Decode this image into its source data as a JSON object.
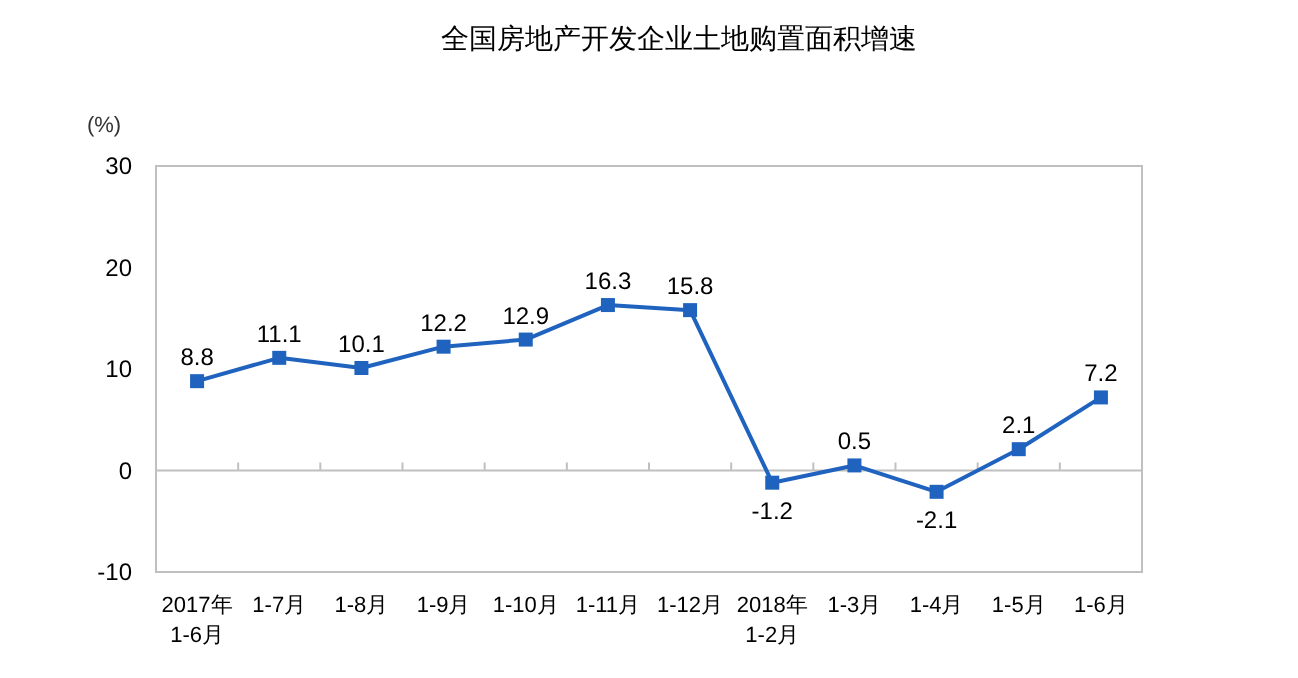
{
  "chart_data": {
    "type": "line",
    "title": "全国房地产开发企业土地购置面积增速",
    "ylabel": "(%)",
    "categories": [
      "2017年\n1-6月",
      "1-7月",
      "1-8月",
      "1-9月",
      "1-10月",
      "1-11月",
      "1-12月",
      "2018年\n1-2月",
      "1-3月",
      "1-4月",
      "1-5月",
      "1-6月"
    ],
    "series": [
      {
        "color": "#1f63bf",
        "values": [
          8.8,
          11.1,
          10.1,
          12.2,
          12.9,
          16.3,
          15.8,
          -1.2,
          0.5,
          -2.1,
          2.1,
          7.2
        ]
      }
    ],
    "ylim": [
      -10,
      30
    ],
    "yticks": [
      -10,
      0,
      10,
      20,
      30
    ],
    "marker": "square",
    "line_style": "solid",
    "data_labels": true
  }
}
